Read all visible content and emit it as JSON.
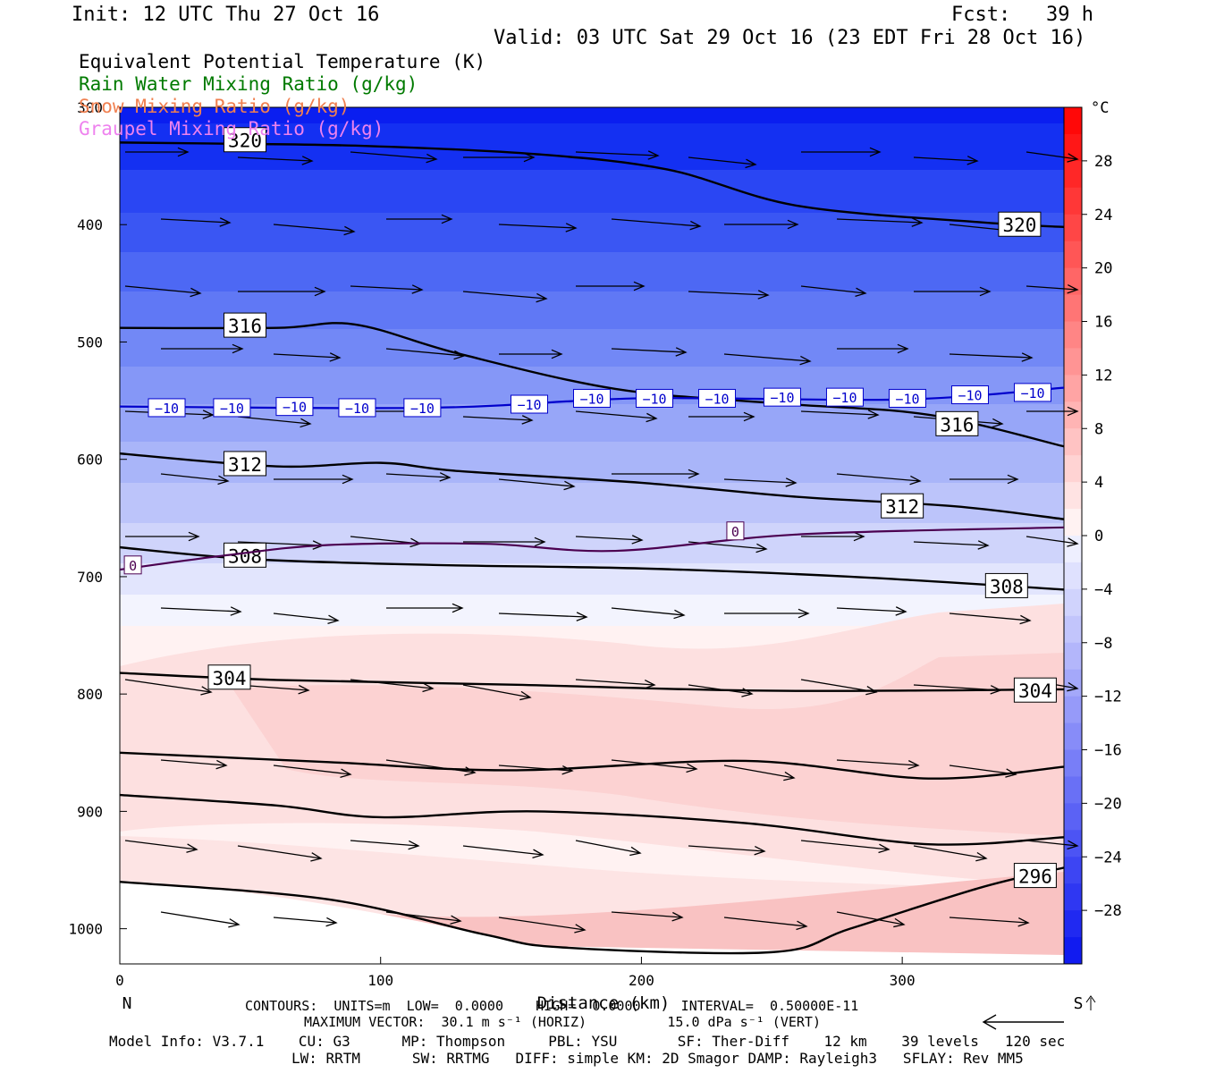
{
  "header": {
    "init": "Init: 12 UTC Thu 27 Oct 16",
    "fcst": "Fcst:   39 h",
    "valid": "Valid: 03 UTC Sat 29 Oct 16 (23 EDT Fri 28 Oct 16)"
  },
  "legend": {
    "items": [
      {
        "label": "Equivalent Potential Temperature (K)",
        "color": "#000000"
      },
      {
        "label": "Rain Water Mixing Ratio (g/kg)",
        "color": "#007a00"
      },
      {
        "label": "Snow Mixing Ratio (g/kg)",
        "color": "#f08050"
      },
      {
        "label": "Graupel Mixing Ratio (g/kg)",
        "color": "#ee82ee"
      }
    ]
  },
  "chart_data": {
    "type": "cross-section",
    "xlabel": "Distance (km)",
    "x_ticks": [
      "0",
      "100",
      "200",
      "300"
    ],
    "xlim": [
      0,
      362
    ],
    "y_ticks": [
      "300",
      "400",
      "500",
      "600",
      "700",
      "800",
      "900",
      "1000"
    ],
    "ylim": [
      1030,
      300
    ],
    "end_labels": {
      "left": "N",
      "right": "S"
    },
    "colorbar": {
      "unit": "°C",
      "ticks": [
        "28",
        "24",
        "20",
        "16",
        "12",
        "8",
        "4",
        "0",
        "-4",
        "-8",
        "-12",
        "-16",
        "-20",
        "-24",
        "-28"
      ],
      "range": [
        -32,
        32
      ]
    },
    "theta_e_contours": [
      {
        "value": 320,
        "points": [
          [
            0,
            330
          ],
          [
            40,
            331
          ],
          [
            95,
            333
          ],
          [
            160,
            340
          ],
          [
            210,
            353
          ],
          [
            260,
            384
          ],
          [
            330,
            398
          ],
          [
            362,
            402
          ]
        ],
        "labels": [
          {
            "text": "320",
            "x": 48,
            "y": 328
          },
          {
            "text": "320",
            "x": 345,
            "y": 400
          }
        ]
      },
      {
        "value": 316,
        "points": [
          [
            0,
            488
          ],
          [
            60,
            488
          ],
          [
            90,
            485
          ],
          [
            130,
            510
          ],
          [
            190,
            540
          ],
          [
            250,
            552
          ],
          [
            310,
            562
          ],
          [
            362,
            589
          ]
        ],
        "labels": [
          {
            "text": "316",
            "x": 48,
            "y": 486
          },
          {
            "text": "316",
            "x": 321,
            "y": 570
          }
        ]
      },
      {
        "value": 312,
        "points": [
          [
            0,
            595
          ],
          [
            60,
            606
          ],
          [
            100,
            603
          ],
          [
            130,
            610
          ],
          [
            200,
            620
          ],
          [
            260,
            632
          ],
          [
            320,
            640
          ],
          [
            362,
            651
          ]
        ],
        "labels": [
          {
            "text": "312",
            "x": 48,
            "y": 604
          },
          {
            "text": "312",
            "x": 300,
            "y": 640
          }
        ]
      },
      {
        "value": 308,
        "points": [
          [
            0,
            675
          ],
          [
            50,
            685
          ],
          [
            120,
            690
          ],
          [
            200,
            693
          ],
          [
            280,
            700
          ],
          [
            362,
            711
          ]
        ],
        "labels": [
          {
            "text": "308",
            "x": 48,
            "y": 682
          },
          {
            "text": "308",
            "x": 340,
            "y": 708
          }
        ]
      },
      {
        "value": 304,
        "points": [
          [
            0,
            782
          ],
          [
            60,
            788
          ],
          [
            150,
            792
          ],
          [
            240,
            797
          ],
          [
            310,
            797
          ],
          [
            362,
            796
          ]
        ],
        "labels": [
          {
            "text": "304",
            "x": 42,
            "y": 786
          },
          {
            "text": "304",
            "x": 351,
            "y": 797
          }
        ]
      },
      {
        "value": 300,
        "points": [
          [
            0,
            850
          ],
          [
            80,
            858
          ],
          [
            150,
            865
          ],
          [
            240,
            857
          ],
          [
            310,
            872
          ],
          [
            362,
            862
          ]
        ],
        "labels": []
      },
      {
        "value": 298,
        "points": [
          [
            0,
            886
          ],
          [
            60,
            895
          ],
          [
            100,
            905
          ],
          [
            160,
            900
          ],
          [
            240,
            910
          ],
          [
            310,
            928
          ],
          [
            362,
            922
          ]
        ],
        "labels": []
      },
      {
        "value": 296,
        "points": [
          [
            0,
            960
          ],
          [
            80,
            975
          ],
          [
            140,
            1005
          ],
          [
            170,
            1016
          ],
          [
            250,
            1020
          ],
          [
            280,
            1000
          ],
          [
            330,
            965
          ],
          [
            362,
            948
          ]
        ],
        "labels": [
          {
            "text": "296",
            "x": 351,
            "y": 955
          }
        ]
      }
    ],
    "temperature_contours": [
      {
        "value": -10,
        "color": "#0000cc",
        "points": [
          [
            0,
            555
          ],
          [
            120,
            556
          ],
          [
            200,
            548
          ],
          [
            300,
            549
          ],
          [
            362,
            539
          ]
        ],
        "labels": [
          {
            "text": "-10",
            "x": 18,
            "y": 556
          },
          {
            "text": "-10",
            "x": 43,
            "y": 556
          },
          {
            "text": "-10",
            "x": 67,
            "y": 555
          },
          {
            "text": "-10",
            "x": 91,
            "y": 556
          },
          {
            "text": "-10",
            "x": 116,
            "y": 556
          },
          {
            "text": "-10",
            "x": 157,
            "y": 553
          },
          {
            "text": "-10",
            "x": 181,
            "y": 548
          },
          {
            "text": "-10",
            "x": 205,
            "y": 548
          },
          {
            "text": "-10",
            "x": 229,
            "y": 548
          },
          {
            "text": "-10",
            "x": 254,
            "y": 547
          },
          {
            "text": "-10",
            "x": 278,
            "y": 547
          },
          {
            "text": "-10",
            "x": 302,
            "y": 548
          },
          {
            "text": "-10",
            "x": 326,
            "y": 545
          },
          {
            "text": "-10",
            "x": 350,
            "y": 543
          }
        ]
      },
      {
        "value": 0,
        "color": "#4b0050",
        "points": [
          [
            0,
            694
          ],
          [
            40,
            682
          ],
          [
            80,
            673
          ],
          [
            140,
            672
          ],
          [
            190,
            678
          ],
          [
            260,
            664
          ],
          [
            362,
            658
          ]
        ],
        "labels": [
          {
            "text": "0",
            "x": 5,
            "y": 690
          },
          {
            "text": "0",
            "x": 236,
            "y": 661
          }
        ]
      }
    ],
    "contour_info": {
      "text": "CONTOURS:  UNITS=m  LOW=  0.0000    HIGH=  0.0000     INTERVAL=  0.50000E-11"
    },
    "max_vector": {
      "text": "MAXIMUM VECTOR:  30.1 m s⁻¹ (HORIZ)          15.0 dPa s⁻¹ (VERT)"
    }
  },
  "footer": {
    "model_info": "Model Info: V3.7.1    CU: G3      MP: Thompson     PBL: YSU       SF: Ther-Diff    12 km    39 levels   120 sec",
    "model_info2": "LW: RRTM      SW: RRTMG   DIFF: simple KM: 2D Smagor DAMP: Rayleigh3   SFLAY: Rev MM5"
  }
}
